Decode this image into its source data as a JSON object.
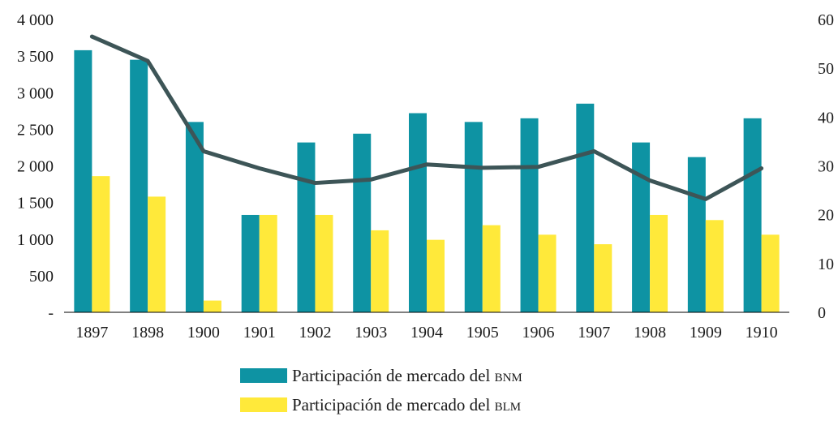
{
  "chart_data": {
    "type": "bar",
    "categories": [
      "1897",
      "1898",
      "1900",
      "1901",
      "1902",
      "1903",
      "1904",
      "1905",
      "1906",
      "1907",
      "1908",
      "1909",
      "1910"
    ],
    "series": [
      {
        "name": "Participación de mercado del BNM",
        "kind": "bar",
        "axis": "left",
        "color": "#0E93A3",
        "values": [
          3580,
          3450,
          2600,
          1330,
          2320,
          2440,
          2720,
          2600,
          2650,
          2850,
          2320,
          2120,
          2650
        ]
      },
      {
        "name": "Participación de mercado del BLM",
        "kind": "bar",
        "axis": "left",
        "color": "#FFE93A",
        "values": [
          1860,
          1580,
          160,
          1330,
          1330,
          1120,
          990,
          1190,
          1060,
          930,
          1330,
          1260,
          1060
        ]
      },
      {
        "kind": "line",
        "axis": "right",
        "color": "#3D5557",
        "values": [
          56.5,
          51.5,
          33,
          29.5,
          26.5,
          27.2,
          30.3,
          29.6,
          29.8,
          33,
          27,
          23.2,
          29.5
        ]
      }
    ],
    "y_left": {
      "min": 0,
      "max": 4000,
      "ticks": [
        0,
        500,
        1000,
        1500,
        2000,
        2500,
        3000,
        3500,
        4000
      ],
      "tick_labels": [
        "-",
        "500",
        "1 000",
        "1 500",
        "2 000",
        "2 500",
        "3 000",
        "3 500",
        "4 000"
      ]
    },
    "y_right": {
      "min": 0,
      "max": 60,
      "ticks": [
        0,
        10,
        20,
        30,
        40,
        50,
        60
      ],
      "tick_labels": [
        "0",
        "10",
        "20",
        "30",
        "40",
        "50",
        "60"
      ]
    },
    "legend": {
      "position": "bottom",
      "items": [
        {
          "label_main": "Participación de mercado del ",
          "label_abbr": "bnm",
          "color": "#0E93A3"
        },
        {
          "label_main": "Participación de mercado del ",
          "label_abbr": "blm",
          "color": "#FFE93A"
        }
      ]
    },
    "grid": false
  }
}
